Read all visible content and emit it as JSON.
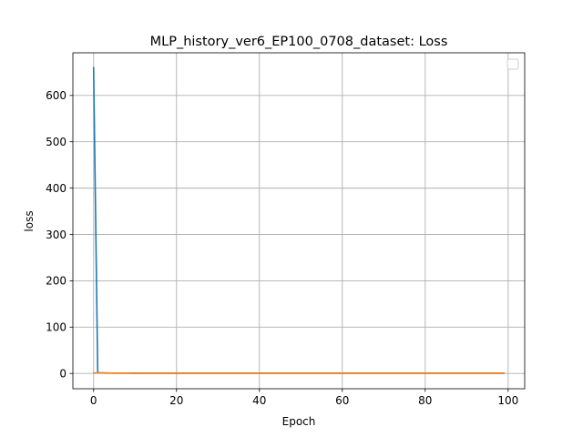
{
  "chart_data": {
    "type": "line",
    "title": "MLP_history_ver6_EP100_0708_dataset: Loss",
    "xlabel": "Epoch",
    "ylabel": "loss",
    "xlim": [
      -5,
      104
    ],
    "ylim": [
      -33,
      692
    ],
    "xticks": [
      0,
      20,
      40,
      60,
      80,
      100
    ],
    "yticks": [
      0,
      100,
      200,
      300,
      400,
      500,
      600
    ],
    "grid": true,
    "legend": {
      "placement": "top-right",
      "entries": []
    },
    "series": [
      {
        "color": "#1f77b4",
        "x": [
          0,
          1,
          2,
          3,
          4,
          5,
          6,
          7,
          8,
          9,
          10,
          11,
          12,
          13,
          14,
          15,
          16,
          17,
          18,
          19,
          20,
          21,
          22,
          23,
          24,
          25,
          26,
          27,
          28,
          29,
          30,
          31,
          32,
          33,
          34,
          35,
          36,
          37,
          38,
          39,
          40,
          41,
          42,
          43,
          44,
          45,
          46,
          47,
          48,
          49,
          50,
          51,
          52,
          53,
          54,
          55,
          56,
          57,
          58,
          59,
          60,
          61,
          62,
          63,
          64,
          65,
          66,
          67,
          68,
          69,
          70,
          71,
          72,
          73,
          74,
          75,
          76,
          77,
          78,
          79,
          80,
          81,
          82,
          83,
          84,
          85,
          86,
          87,
          88,
          89,
          90,
          91,
          92,
          93,
          94,
          95,
          96,
          97,
          98,
          99
        ],
        "values": [
          660,
          1.5,
          1.2,
          1.0,
          0.9,
          0.8,
          0.8,
          0.7,
          0.7,
          0.7,
          0.6,
          0.6,
          0.6,
          0.6,
          0.6,
          0.5,
          0.5,
          0.5,
          0.5,
          0.5,
          0.5,
          0.5,
          0.5,
          0.5,
          0.5,
          0.5,
          0.5,
          0.5,
          0.5,
          0.5,
          0.5,
          0.5,
          0.5,
          0.5,
          0.5,
          0.5,
          0.5,
          0.5,
          0.5,
          0.5,
          0.5,
          0.5,
          0.5,
          0.5,
          0.5,
          0.5,
          0.5,
          0.5,
          0.5,
          0.5,
          0.5,
          0.5,
          0.5,
          0.5,
          0.5,
          0.5,
          0.5,
          0.5,
          0.5,
          0.5,
          0.5,
          0.5,
          0.5,
          0.5,
          0.5,
          0.5,
          0.5,
          0.5,
          0.5,
          0.5,
          0.5,
          0.5,
          0.5,
          0.5,
          0.5,
          0.5,
          0.5,
          0.5,
          0.5,
          0.5,
          0.5,
          0.5,
          0.5,
          0.5,
          0.5,
          0.5,
          0.5,
          0.5,
          0.5,
          0.5,
          0.5,
          0.5,
          0.5,
          0.5,
          0.5,
          0.5,
          0.5,
          0.5,
          0.5,
          0.5
        ]
      },
      {
        "color": "#ff7f0e",
        "x": [
          0,
          1,
          2,
          3,
          4,
          5,
          6,
          7,
          8,
          9,
          10,
          11,
          12,
          13,
          14,
          15,
          16,
          17,
          18,
          19,
          20,
          21,
          22,
          23,
          24,
          25,
          26,
          27,
          28,
          29,
          30,
          31,
          32,
          33,
          34,
          35,
          36,
          37,
          38,
          39,
          40,
          41,
          42,
          43,
          44,
          45,
          46,
          47,
          48,
          49,
          50,
          51,
          52,
          53,
          54,
          55,
          56,
          57,
          58,
          59,
          60,
          61,
          62,
          63,
          64,
          65,
          66,
          67,
          68,
          69,
          70,
          71,
          72,
          73,
          74,
          75,
          76,
          77,
          78,
          79,
          80,
          81,
          82,
          83,
          84,
          85,
          86,
          87,
          88,
          89,
          90,
          91,
          92,
          93,
          94,
          95,
          96,
          97,
          98,
          99
        ],
        "values": [
          1.0,
          0.9,
          0.9,
          0.8,
          0.8,
          0.7,
          0.7,
          0.7,
          0.7,
          0.6,
          0.6,
          0.6,
          0.6,
          0.6,
          0.6,
          0.6,
          0.6,
          0.6,
          0.6,
          0.6,
          0.6,
          0.6,
          0.6,
          0.6,
          0.6,
          0.6,
          0.6,
          0.6,
          0.6,
          0.6,
          0.6,
          0.6,
          0.6,
          0.6,
          0.6,
          0.6,
          0.6,
          0.6,
          0.6,
          0.6,
          0.6,
          0.6,
          0.6,
          0.6,
          0.6,
          0.6,
          0.6,
          0.6,
          0.6,
          0.6,
          0.6,
          0.6,
          0.6,
          0.6,
          0.6,
          0.6,
          0.6,
          0.6,
          0.6,
          0.6,
          0.6,
          0.6,
          0.6,
          0.6,
          0.6,
          0.6,
          0.6,
          0.6,
          0.6,
          0.6,
          0.6,
          0.6,
          0.6,
          0.6,
          0.6,
          0.6,
          0.6,
          0.6,
          0.6,
          0.6,
          0.6,
          0.6,
          0.6,
          0.6,
          0.6,
          0.6,
          0.6,
          0.6,
          0.6,
          0.6,
          0.6,
          0.6,
          0.6,
          0.6,
          0.6,
          0.6,
          0.6,
          0.6,
          0.6,
          0.6
        ]
      }
    ]
  }
}
